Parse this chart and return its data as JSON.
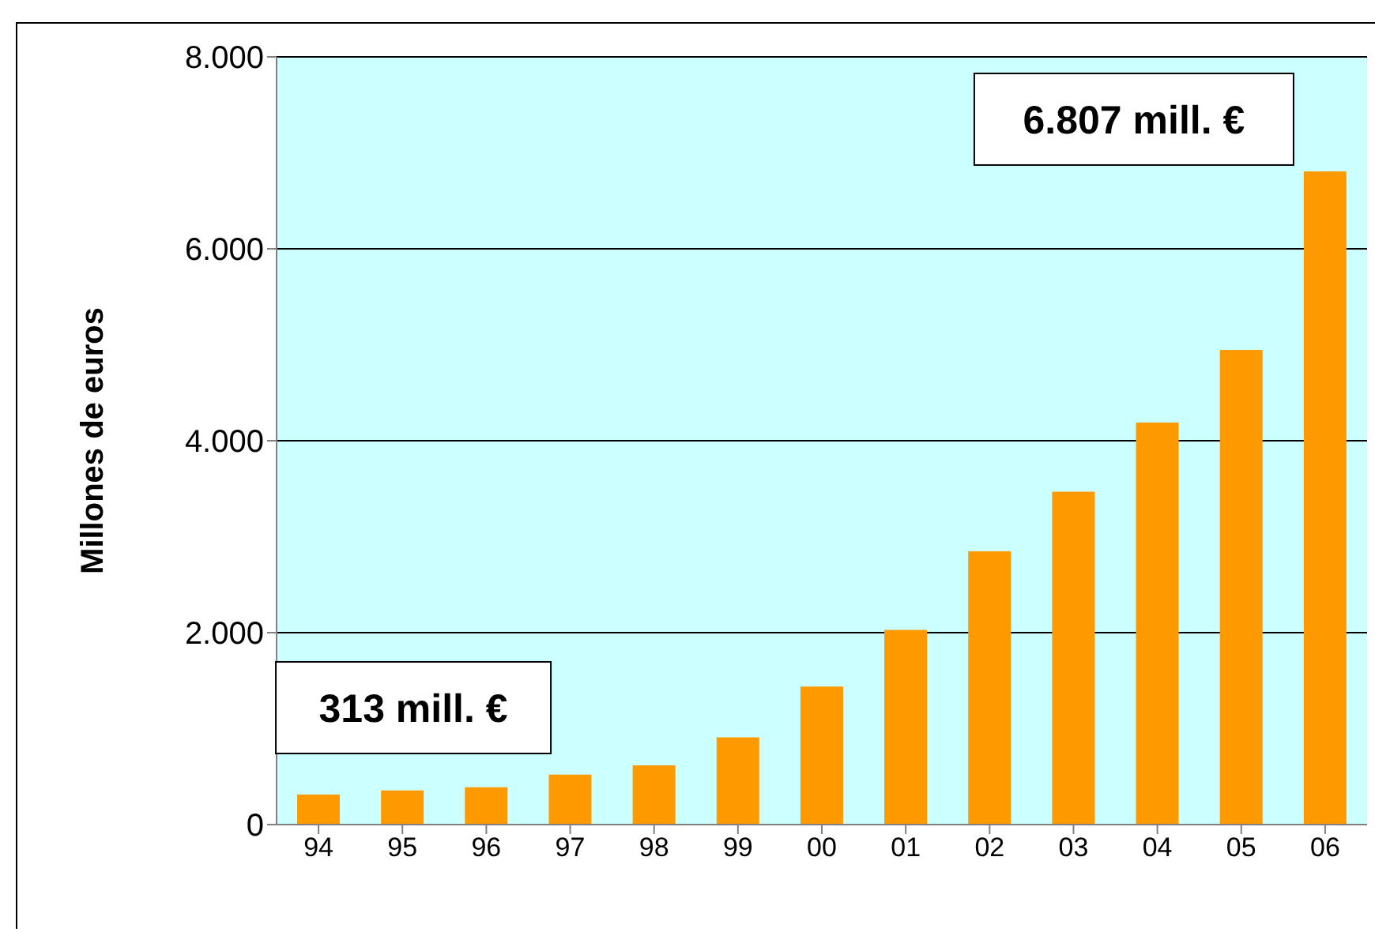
{
  "chart_data": {
    "type": "bar",
    "ylabel": "Millones de euros",
    "categories": [
      "94",
      "95",
      "96",
      "97",
      "98",
      "99",
      "00",
      "01",
      "02",
      "03",
      "04",
      "05",
      "06"
    ],
    "values": [
      313,
      356,
      389,
      520,
      618,
      910,
      1438,
      2028,
      2848,
      3470,
      4190,
      4946,
      6807
    ],
    "color": "#ff9900",
    "ylim": [
      0,
      8000
    ],
    "yticks": [
      {
        "value": 0,
        "label": "0"
      },
      {
        "value": 2000,
        "label": "2.000"
      },
      {
        "value": 4000,
        "label": "4.000"
      },
      {
        "value": 6000,
        "label": "6.000"
      },
      {
        "value": 8000,
        "label": "8.000"
      }
    ],
    "grid": "y",
    "annotations": [
      {
        "text": "313 mill. €",
        "x": "94",
        "y": 313
      },
      {
        "text": "6.807 mill. €",
        "x": "06",
        "y": 6807
      }
    ]
  }
}
